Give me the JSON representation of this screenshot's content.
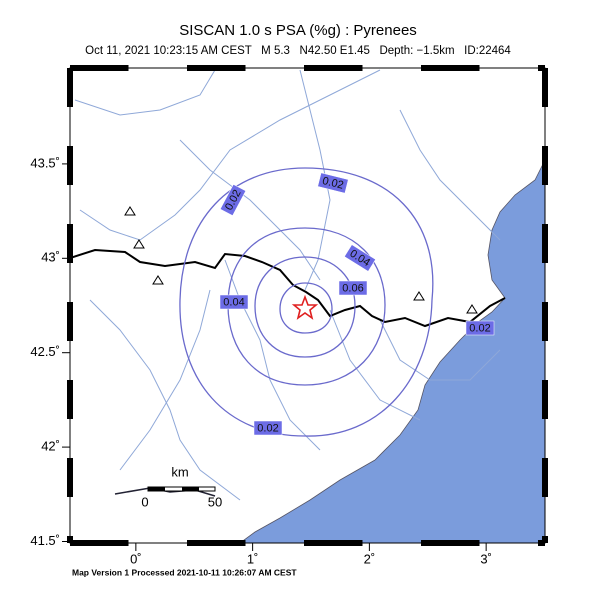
{
  "header": {
    "title": "SISCAN 1.0 s PSA (%g) : Pyrenees",
    "subtitle": "Oct 11, 2021 10:23:15 AM CEST   M 5.3   N42.50 E1.45   Depth: −1.5km   ID:22464"
  },
  "map": {
    "xlim": [
      -0.564,
      3.504
    ],
    "ylim": [
      41.492,
      44.008
    ],
    "xticks": [
      {
        "value": 0,
        "label": "0˚"
      },
      {
        "value": 1,
        "label": "1˚"
      },
      {
        "value": 2,
        "label": "2˚"
      },
      {
        "value": 3,
        "label": "3˚"
      }
    ],
    "yticks": [
      {
        "value": 41.5,
        "label": "41.5˚"
      },
      {
        "value": 42,
        "label": "42˚"
      },
      {
        "value": 42.5,
        "label": "42.5˚"
      },
      {
        "value": 43,
        "label": "43˚"
      },
      {
        "value": 43.5,
        "label": "43.5˚"
      }
    ],
    "contour_labels": [
      "0.02",
      "0.02",
      "0.02",
      "0.02",
      "0.04",
      "0.04",
      "0.06"
    ],
    "scale_bar": {
      "unit": "km",
      "start": "0",
      "end": "50"
    }
  },
  "footer": "Map Version 1 Processed 2021-10-11 10:26:07 AM CEST"
}
